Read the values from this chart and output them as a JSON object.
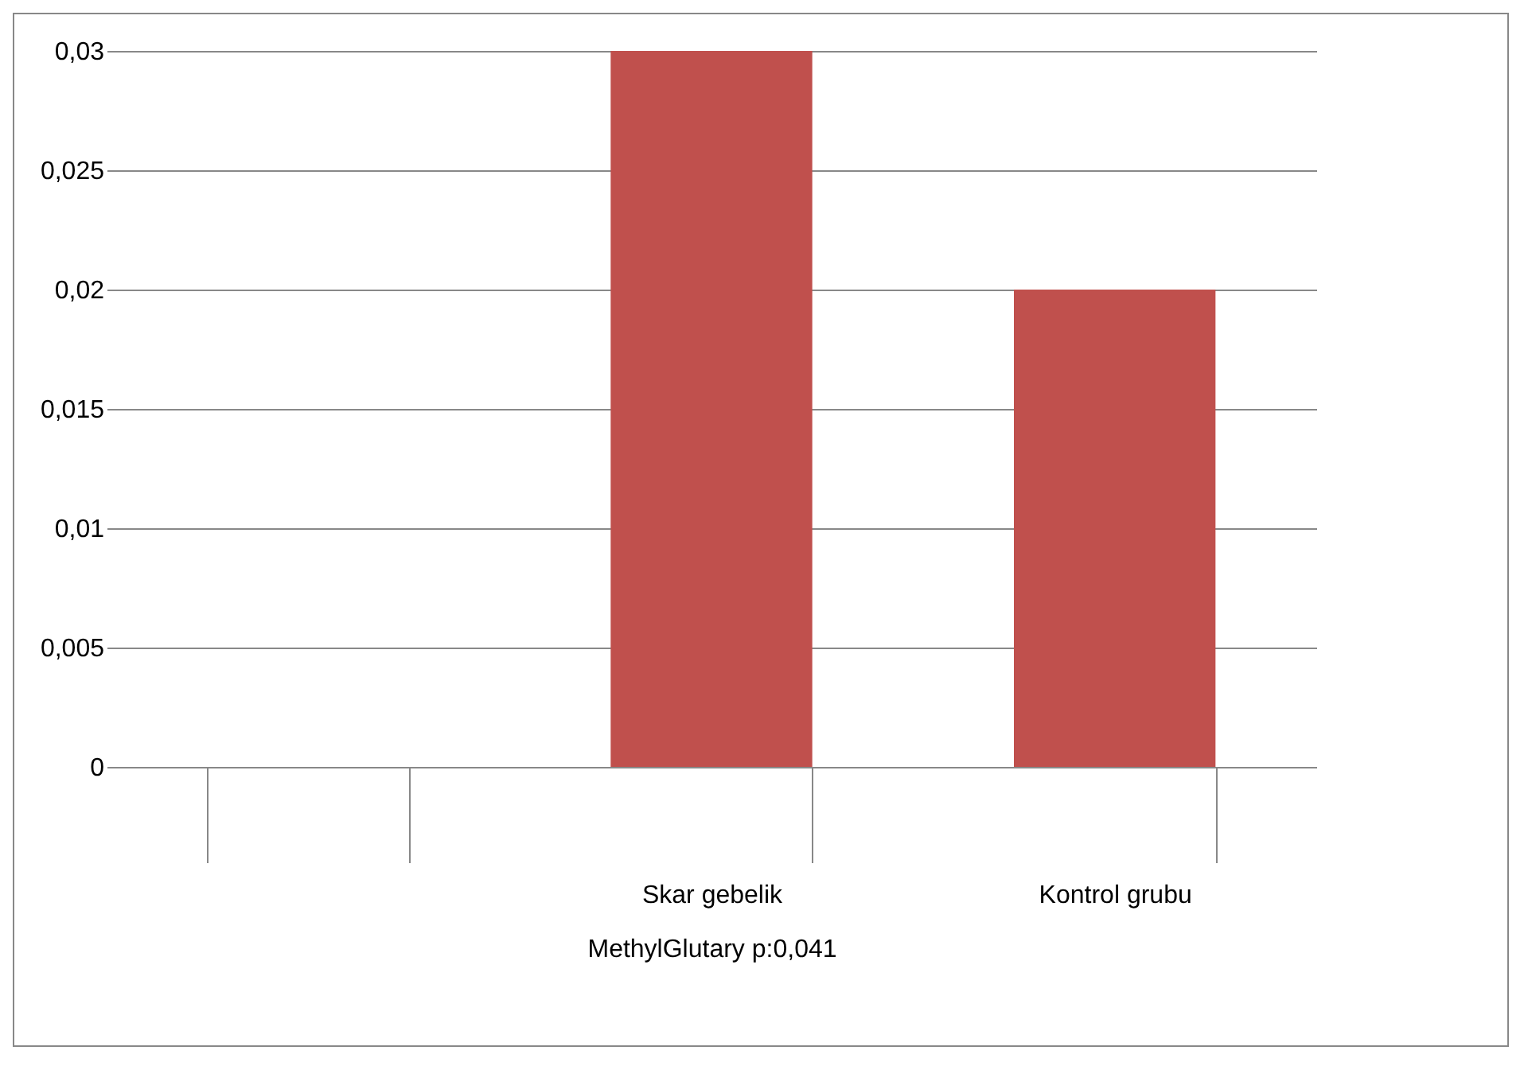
{
  "chart_data": {
    "type": "bar",
    "categories": [
      null,
      "Skar gebelik",
      "Kontrol grubu"
    ],
    "values": [
      null,
      0.03,
      0.02
    ],
    "color": "#c0504d",
    "xlabel": "MethylGlutary   p:0,041",
    "ylim": [
      0,
      0.03
    ],
    "yticks": [
      {
        "value": 0,
        "label": "0"
      },
      {
        "value": 0.005,
        "label": "0,005"
      },
      {
        "value": 0.01,
        "label": "0,01"
      },
      {
        "value": 0.015,
        "label": "0,015"
      },
      {
        "value": 0.02,
        "label": "0,02"
      },
      {
        "value": 0.025,
        "label": "0,025"
      },
      {
        "value": 0.03,
        "label": "0,03"
      }
    ],
    "grid": "y"
  }
}
